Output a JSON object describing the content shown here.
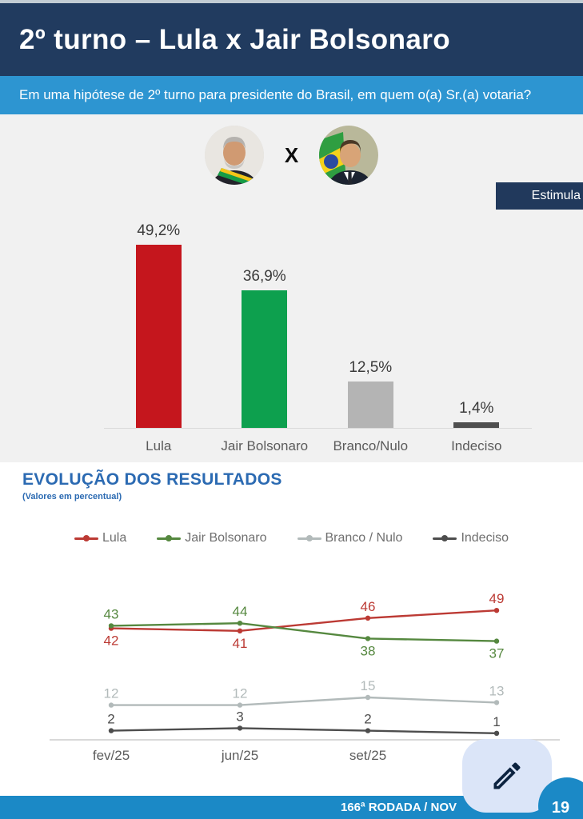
{
  "header": {
    "title": "2º turno – Lula x Jair Bolsonaro"
  },
  "question": {
    "text": "Em uma hipótese de 2º turno para presidente do Brasil, em quem o(a) Sr.(a) votaria?"
  },
  "matchup": {
    "left_name": "Lula",
    "right_name": "Jair Bolsonaro",
    "vs_label": "X"
  },
  "badge": {
    "label": "Estimula"
  },
  "evolution": {
    "title": "EVOLUÇÃO DOS RESULTADOS",
    "subtitle": "(Valores em percentual)"
  },
  "footer": {
    "text": "166ª RODADA / NOV",
    "page_number": "19"
  },
  "icons": {
    "edit_button": "pencil-icon"
  },
  "colors": {
    "header_navy": "#213b5f",
    "question_blue": "#2d95d1",
    "panel_gray": "#f1f1f1",
    "heading_blue": "#2b6ab2",
    "footer_blue": "#1b89c6",
    "fab_lavender": "#dbe5f8",
    "pencil_navy": "#0c2340"
  },
  "chart_data": [
    {
      "type": "bar",
      "title": "",
      "categories": [
        "Lula",
        "Jair Bolsonaro",
        "Branco/Nulo",
        "Indeciso"
      ],
      "values": [
        49.2,
        36.9,
        12.5,
        1.4
      ],
      "value_labels": [
        "49,2%",
        "36,9%",
        "12,5%",
        "1,4%"
      ],
      "colors": [
        "#c5161d",
        "#0da04e",
        "#b4b4b4",
        "#4f4f4f"
      ],
      "xlabel": "",
      "ylabel": "",
      "ylim": [
        0,
        55
      ],
      "grid": false
    },
    {
      "type": "line",
      "title": "EVOLUÇÃO DOS RESULTADOS",
      "x": [
        "fev/25",
        "jun/25",
        "set/25",
        ""
      ],
      "series": [
        {
          "name": "Lula",
          "values": [
            42,
            41,
            46,
            49
          ],
          "color": "#bc3a34",
          "label_side": [
            "below",
            "below",
            "above",
            "above"
          ]
        },
        {
          "name": "Jair Bolsonaro",
          "values": [
            43,
            44,
            38,
            37
          ],
          "color": "#55883f",
          "label_side": [
            "above",
            "above",
            "below",
            "below"
          ]
        },
        {
          "name": "Branco / Nulo",
          "values": [
            12,
            12,
            15,
            13
          ],
          "color": "#b2baba",
          "label_side": [
            "above",
            "above",
            "above",
            "above"
          ]
        },
        {
          "name": "Indeciso",
          "values": [
            2,
            3,
            2,
            1
          ],
          "color": "#4d4d4d",
          "label_side": [
            "above",
            "above",
            "above",
            "above"
          ]
        }
      ],
      "ylim": [
        0,
        55
      ],
      "grid": false,
      "legend_position": "top"
    }
  ]
}
